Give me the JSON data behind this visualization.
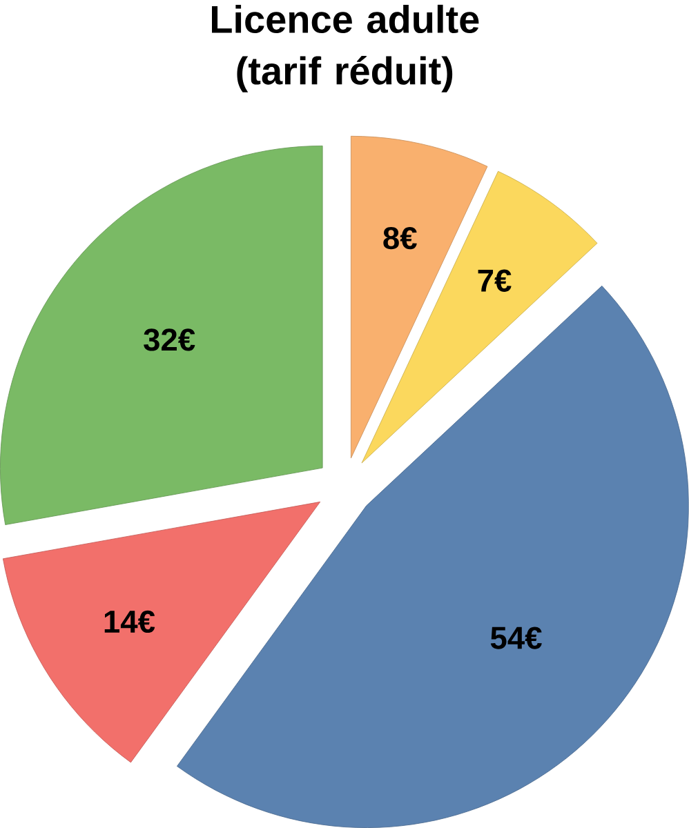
{
  "chart_data": {
    "type": "pie",
    "title": "Licence adulte (tarif réduit)",
    "values": [
      8,
      7,
      54,
      14,
      32
    ],
    "colors": [
      "#f9b06e",
      "#fbd85d",
      "#5b82b0",
      "#f2706b",
      "#7aba65"
    ],
    "value_labels": [
      "8€",
      "7€",
      "54€",
      "14€",
      "32€"
    ]
  }
}
